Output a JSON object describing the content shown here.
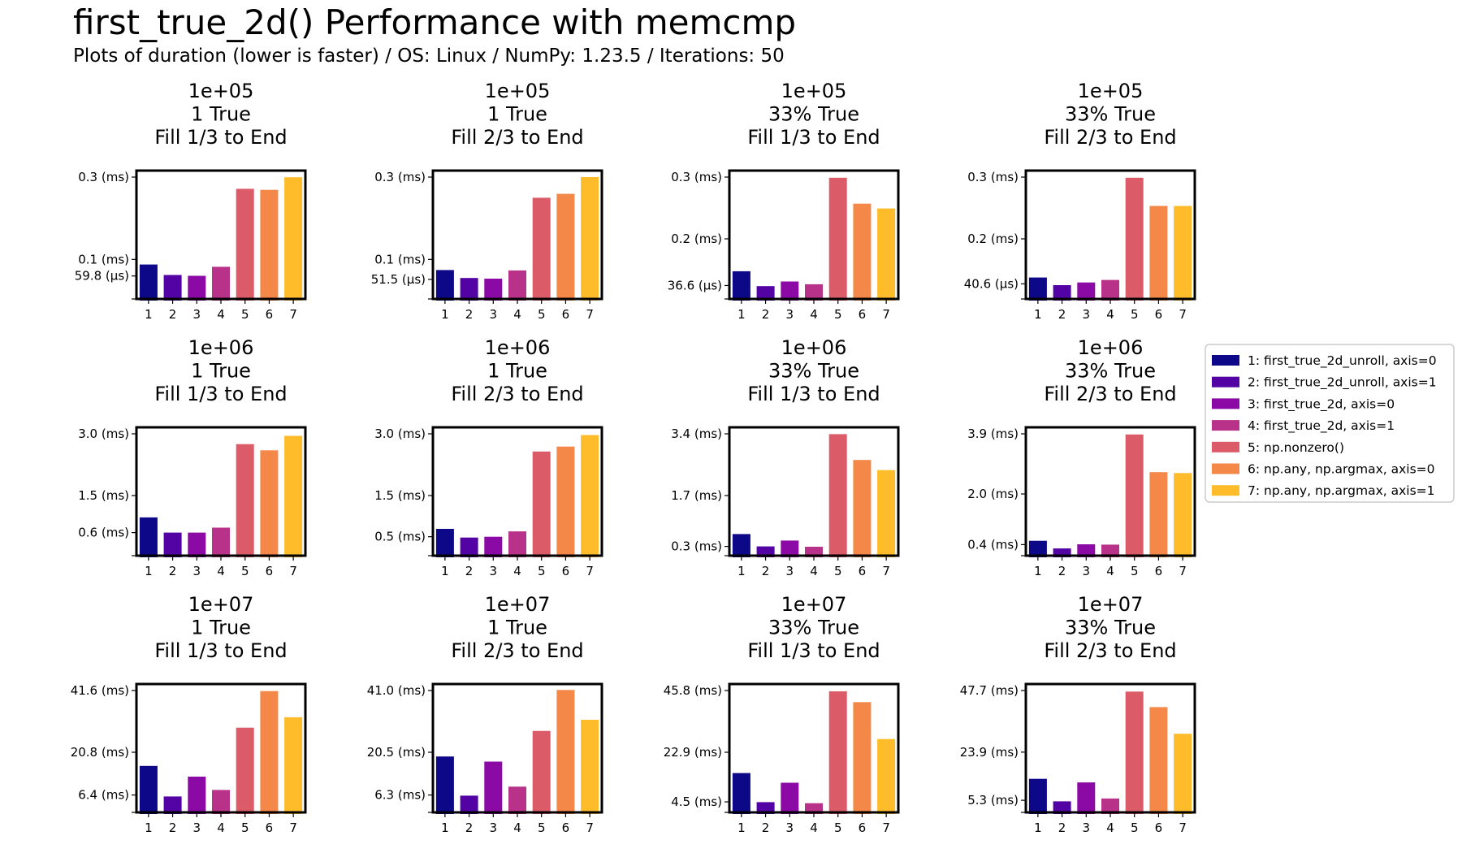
{
  "title": "first_true_2d() Performance with memcmp",
  "subtitle": "Plots of duration (lower is faster) / OS: Linux / NumPy: 1.23.5 / Iterations: 50",
  "colors": [
    "#0d0887",
    "#5302a3",
    "#8b0aa5",
    "#b83289",
    "#db5c68",
    "#f48849",
    "#febc2a"
  ],
  "legend": {
    "placement": "right",
    "entries": [
      "1: first_true_2d_unroll, axis=0",
      "2: first_true_2d_unroll, axis=1",
      "3: first_true_2d, axis=0",
      "4: first_true_2d, axis=1",
      "5: np.nonzero()",
      "6: np.any, np.argmax, axis=0",
      "7: np.any, np.argmax, axis=1"
    ]
  },
  "chart_data": [
    {
      "type": "bar",
      "title": [
        "1e+05",
        "1 True",
        "Fill 1/3 to End"
      ],
      "categories": [
        "1",
        "2",
        "3",
        "4",
        "5",
        "6",
        "7"
      ],
      "values": [
        0.0877,
        0.0621,
        0.0601,
        0.0821,
        0.2716,
        0.2691,
        0.2997
      ],
      "unit": "ms",
      "ylim": [
        0,
        0.3
      ],
      "yticks": [
        {
          "v": 0.0598,
          "label": "59.8 (µs)"
        },
        {
          "v": 0.1,
          "label": "0.1 (ms)"
        },
        {
          "v": 0.3,
          "label": "0.3 (ms)"
        }
      ]
    },
    {
      "type": "bar",
      "title": [
        "1e+05",
        "1 True",
        "Fill 2/3 to End"
      ],
      "categories": [
        "1",
        "2",
        "3",
        "4",
        "5",
        "6",
        "7"
      ],
      "values": [
        0.0742,
        0.0549,
        0.0532,
        0.0733,
        0.2498,
        0.2593,
        0.3
      ],
      "unit": "ms",
      "ylim": [
        0,
        0.3
      ],
      "yticks": [
        {
          "v": 0.0515,
          "label": "51.5 (µs)"
        },
        {
          "v": 0.1,
          "label": "0.1 (ms)"
        },
        {
          "v": 0.3,
          "label": "0.3 (ms)"
        }
      ]
    },
    {
      "type": "bar",
      "title": [
        "1e+05",
        "33% True",
        "Fill 1/3 to End"
      ],
      "categories": [
        "1",
        "2",
        "3",
        "4",
        "5",
        "6",
        "7"
      ],
      "values": [
        0.0713,
        0.0351,
        0.0463,
        0.0397,
        0.2985,
        0.2355,
        0.2239
      ],
      "unit": "ms",
      "ylim": [
        0,
        0.3
      ],
      "yticks": [
        {
          "v": 0.0366,
          "label": "36.6 (µs)"
        },
        {
          "v": 0.15,
          "label": "0.2 (ms)"
        },
        {
          "v": 0.3,
          "label": "0.3 (ms)"
        }
      ]
    },
    {
      "type": "bar",
      "title": [
        "1e+05",
        "33% True",
        "Fill 2/3 to End"
      ],
      "categories": [
        "1",
        "2",
        "3",
        "4",
        "5",
        "6",
        "7"
      ],
      "values": [
        0.0561,
        0.0375,
        0.044,
        0.0501,
        0.2985,
        0.23,
        0.23
      ],
      "unit": "ms",
      "ylim": [
        0,
        0.3
      ],
      "yticks": [
        {
          "v": 0.0406,
          "label": "40.6 (µs)"
        },
        {
          "v": 0.15,
          "label": "0.2 (ms)"
        },
        {
          "v": 0.3,
          "label": "0.3 (ms)"
        }
      ]
    },
    {
      "type": "bar",
      "title": [
        "1e+06",
        "1 True",
        "Fill 1/3 to End"
      ],
      "categories": [
        "1",
        "2",
        "3",
        "4",
        "5",
        "6",
        "7"
      ],
      "values": [
        0.97,
        0.6,
        0.6,
        0.72,
        2.75,
        2.6,
        2.95
      ],
      "unit": "ms",
      "ylim": [
        0,
        3.0
      ],
      "yticks": [
        {
          "v": 0.6,
          "label": "0.6 (ms)"
        },
        {
          "v": 1.5,
          "label": "1.5 (ms)"
        },
        {
          "v": 3.0,
          "label": "3.0 (ms)"
        }
      ]
    },
    {
      "type": "bar",
      "title": [
        "1e+06",
        "1 True",
        "Fill 2/3 to End"
      ],
      "categories": [
        "1",
        "2",
        "3",
        "4",
        "5",
        "6",
        "7"
      ],
      "values": [
        0.69,
        0.48,
        0.5,
        0.63,
        2.57,
        2.69,
        2.97
      ],
      "unit": "ms",
      "ylim": [
        0,
        3.0
      ],
      "yticks": [
        {
          "v": 0.5,
          "label": "0.5 (ms)"
        },
        {
          "v": 1.5,
          "label": "1.5 (ms)"
        },
        {
          "v": 3.0,
          "label": "3.0 (ms)"
        }
      ]
    },
    {
      "type": "bar",
      "title": [
        "1e+06",
        "33% True",
        "Fill 1/3 to End"
      ],
      "categories": [
        "1",
        "2",
        "3",
        "4",
        "5",
        "6",
        "7"
      ],
      "values": [
        0.64,
        0.3,
        0.46,
        0.29,
        3.39,
        2.68,
        2.4
      ],
      "unit": "ms",
      "ylim": [
        0,
        3.4
      ],
      "yticks": [
        {
          "v": 0.3,
          "label": "0.3 (ms)"
        },
        {
          "v": 1.7,
          "label": "1.7 (ms)"
        },
        {
          "v": 3.4,
          "label": "3.4 (ms)"
        }
      ]
    },
    {
      "type": "bar",
      "title": [
        "1e+06",
        "33% True",
        "Fill 2/3 to End"
      ],
      "categories": [
        "1",
        "2",
        "3",
        "4",
        "5",
        "6",
        "7"
      ],
      "values": [
        0.52,
        0.28,
        0.41,
        0.4,
        3.88,
        2.69,
        2.66
      ],
      "unit": "ms",
      "ylim": [
        0,
        3.9
      ],
      "yticks": [
        {
          "v": 0.4,
          "label": "0.4 (ms)"
        },
        {
          "v": 2.0,
          "label": "2.0 (ms)"
        },
        {
          "v": 3.9,
          "label": "3.9 (ms)"
        }
      ]
    },
    {
      "type": "bar",
      "title": [
        "1e+07",
        "1 True",
        "Fill 1/3 to End"
      ],
      "categories": [
        "1",
        "2",
        "3",
        "4",
        "5",
        "6",
        "7"
      ],
      "values": [
        16.2,
        5.9,
        12.6,
        8.1,
        29.1,
        41.4,
        32.6
      ],
      "unit": "ms",
      "ylim": [
        0,
        41.6
      ],
      "yticks": [
        {
          "v": 6.4,
          "label": "6.4 (ms)"
        },
        {
          "v": 20.8,
          "label": "20.8 (ms)"
        },
        {
          "v": 41.6,
          "label": "41.6 (ms)"
        }
      ]
    },
    {
      "type": "bar",
      "title": [
        "1e+07",
        "1 True",
        "Fill 2/3 to End"
      ],
      "categories": [
        "1",
        "2",
        "3",
        "4",
        "5",
        "6",
        "7"
      ],
      "values": [
        19.1,
        6.1,
        17.4,
        9.1,
        27.6,
        41.2,
        31.3
      ],
      "unit": "ms",
      "ylim": [
        0,
        41.0
      ],
      "yticks": [
        {
          "v": 6.3,
          "label": "6.3 (ms)"
        },
        {
          "v": 20.5,
          "label": "20.5 (ms)"
        },
        {
          "v": 41.0,
          "label": "41.0 (ms)"
        }
      ]
    },
    {
      "type": "bar",
      "title": [
        "1e+07",
        "33% True",
        "Fill 1/3 to End"
      ],
      "categories": [
        "1",
        "2",
        "3",
        "4",
        "5",
        "6",
        "7"
      ],
      "values": [
        15.2,
        4.4,
        11.6,
        4.0,
        45.5,
        41.5,
        27.8
      ],
      "unit": "ms",
      "ylim": [
        0,
        45.8
      ],
      "yticks": [
        {
          "v": 4.5,
          "label": "4.5 (ms)"
        },
        {
          "v": 22.9,
          "label": "22.9 (ms)"
        },
        {
          "v": 45.8,
          "label": "45.8 (ms)"
        }
      ]
    },
    {
      "type": "bar",
      "title": [
        "1e+07",
        "33% True",
        "Fill 2/3 to End"
      ],
      "categories": [
        "1",
        "2",
        "3",
        "4",
        "5",
        "6",
        "7"
      ],
      "values": [
        13.6,
        4.9,
        12.2,
        6.0,
        47.3,
        41.3,
        31.0
      ],
      "unit": "ms",
      "ylim": [
        0,
        47.7
      ],
      "yticks": [
        {
          "v": 5.3,
          "label": "5.3 (ms)"
        },
        {
          "v": 23.9,
          "label": "23.9 (ms)"
        },
        {
          "v": 47.7,
          "label": "47.7 (ms)"
        }
      ]
    }
  ]
}
